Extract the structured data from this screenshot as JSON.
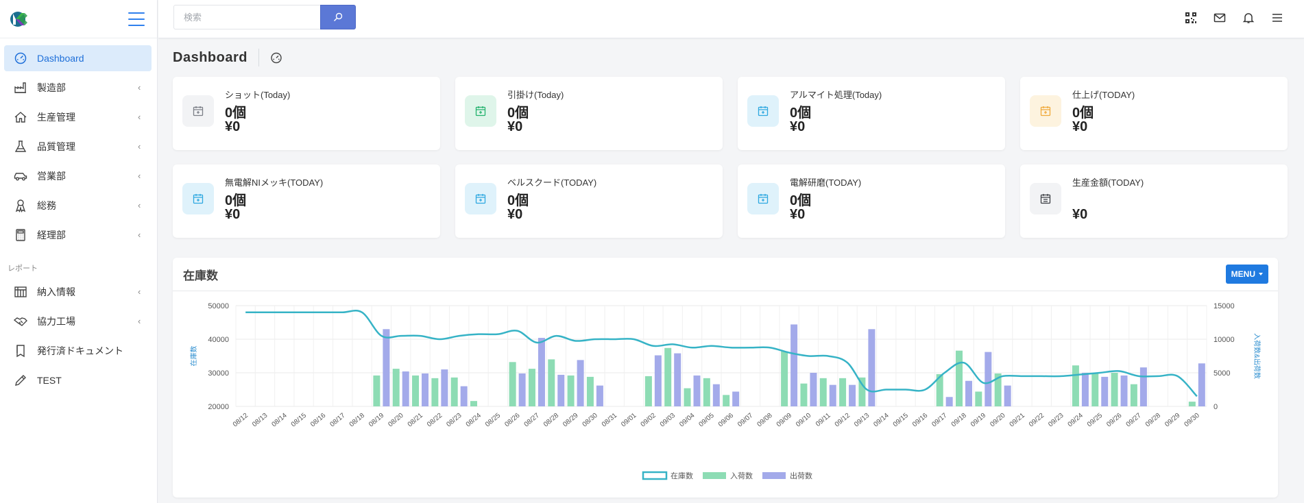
{
  "search": {
    "placeholder": "検索",
    "value": ""
  },
  "sidebar": {
    "items": [
      {
        "label": "Dashboard",
        "icon": "gauge-icon",
        "active": true,
        "chevron": false
      },
      {
        "label": "製造部",
        "icon": "factory-icon",
        "chevron": true
      },
      {
        "label": "生産管理",
        "icon": "home-icon",
        "chevron": true
      },
      {
        "label": "品質管理",
        "icon": "flask-icon",
        "chevron": true
      },
      {
        "label": "営業部",
        "icon": "car-icon",
        "chevron": true
      },
      {
        "label": "総務",
        "icon": "ribbon-icon",
        "chevron": true
      },
      {
        "label": "経理部",
        "icon": "calculator-icon",
        "chevron": true
      }
    ],
    "section_label": "レポート",
    "report_items": [
      {
        "label": "納入情報",
        "icon": "building-icon",
        "chevron": true
      },
      {
        "label": "協力工場",
        "icon": "handshake-icon",
        "chevron": true
      },
      {
        "label": "発行済ドキュメント",
        "icon": "document-icon",
        "chevron": false
      },
      {
        "label": "TEST",
        "icon": "pen-icon",
        "chevron": false
      }
    ]
  },
  "topbar": {
    "icons": [
      "qr-code-icon",
      "mail-icon",
      "bell-icon",
      "menu-icon"
    ]
  },
  "page": {
    "title": "Dashboard"
  },
  "cards": [
    {
      "title": "ショット(Today)",
      "count": "0個",
      "money": "¥0",
      "color": "#7b7f87",
      "bg": "#f2f3f5"
    },
    {
      "title": "引掛け(Today)",
      "count": "0個",
      "money": "¥0",
      "color": "#23b26d",
      "bg": "#dff5ea"
    },
    {
      "title": "アルマイト処理(Today)",
      "count": "0個",
      "money": "¥0",
      "color": "#2ea8e0",
      "bg": "#dff2fb"
    },
    {
      "title": "仕上げ(TODAY)",
      "count": "0個",
      "money": "¥0",
      "color": "#f0a93a",
      "bg": "#fdf3df"
    },
    {
      "title": "無電解NIメッキ(TODAY)",
      "count": "0個",
      "money": "¥0",
      "color": "#2ea8e0",
      "bg": "#dff2fb"
    },
    {
      "title": "ベルスクード(TODAY)",
      "count": "0個",
      "money": "¥0",
      "color": "#2ea8e0",
      "bg": "#dff2fb"
    },
    {
      "title": "電解研磨(TODAY)",
      "count": "0個",
      "money": "¥0",
      "color": "#2ea8e0",
      "bg": "#dff2fb"
    },
    {
      "title": "生産金額(TODAY)",
      "count": "",
      "money": "¥0",
      "color": "#3c3f45",
      "bg": "#f2f3f5"
    }
  ],
  "panel": {
    "title": "在庫数",
    "menu_label": "MENU"
  },
  "chart_data": {
    "type": "bar",
    "categories": [
      "08/12",
      "08/13",
      "08/14",
      "08/15",
      "08/16",
      "08/17",
      "08/18",
      "08/19",
      "08/20",
      "08/21",
      "08/22",
      "08/23",
      "08/24",
      "08/25",
      "08/26",
      "08/27",
      "08/28",
      "08/29",
      "08/30",
      "08/31",
      "09/01",
      "09/02",
      "09/03",
      "09/04",
      "09/05",
      "09/06",
      "09/07",
      "09/08",
      "09/09",
      "09/10",
      "09/11",
      "09/12",
      "09/13",
      "09/14",
      "09/15",
      "09/16",
      "09/17",
      "09/18",
      "09/19",
      "09/20",
      "09/21",
      "09/22",
      "09/23",
      "09/24",
      "09/25",
      "09/26",
      "09/27",
      "09/28",
      "09/29",
      "09/30"
    ],
    "y_left": {
      "label": "在庫数",
      "min": 20000,
      "max": 50000,
      "ticks": [
        20000,
        30000,
        40000,
        50000
      ]
    },
    "y_right": {
      "label": "入荷数&出荷数",
      "min": 0,
      "max": 15000,
      "ticks": [
        0,
        5000,
        10000,
        15000
      ]
    },
    "series": [
      {
        "name": "在庫数",
        "kind": "line",
        "axis": "left",
        "color": "#36b3c6",
        "values": [
          48000,
          48000,
          48000,
          48000,
          48000,
          48000,
          48000,
          41000,
          41000,
          41000,
          40000,
          41000,
          41500,
          41500,
          42500,
          39000,
          41000,
          39500,
          40000,
          40000,
          40000,
          38000,
          38500,
          37500,
          38000,
          37500,
          37500,
          37500,
          36000,
          35000,
          35000,
          33000,
          25000,
          25000,
          25000,
          25000,
          30000,
          33000,
          27000,
          29000,
          29000,
          29000,
          29000,
          29500,
          30000,
          30500,
          29000,
          29000,
          29000,
          23000
        ]
      },
      {
        "name": "入荷数",
        "kind": "bar",
        "axis": "right",
        "color": "#8ddcb4",
        "values": [
          0,
          0,
          0,
          0,
          0,
          0,
          0,
          4600,
          5600,
          4600,
          4200,
          4300,
          800,
          0,
          6600,
          5600,
          7000,
          4600,
          4400,
          0,
          0,
          4500,
          8700,
          2700,
          4200,
          1700,
          0,
          0,
          8200,
          3400,
          4200,
          4200,
          4300,
          0,
          0,
          0,
          4800,
          8300,
          2200,
          4900,
          0,
          0,
          0,
          6100,
          5000,
          5000,
          3300,
          0,
          0,
          700
        ]
      },
      {
        "name": "出荷数",
        "kind": "bar",
        "axis": "right",
        "color": "#a3aaea",
        "values": [
          0,
          0,
          0,
          0,
          0,
          0,
          0,
          11500,
          5200,
          4900,
          5500,
          3000,
          0,
          0,
          4900,
          10200,
          4700,
          6900,
          3100,
          0,
          0,
          7600,
          7900,
          4600,
          3300,
          2200,
          0,
          0,
          12200,
          5000,
          3200,
          3200,
          11500,
          0,
          0,
          0,
          1400,
          3800,
          8100,
          3100,
          0,
          0,
          0,
          5000,
          4400,
          4600,
          5800,
          0,
          0,
          6400
        ]
      }
    ],
    "legend": [
      "在庫数",
      "入荷数",
      "出荷数"
    ],
    "legend_position": "bottom",
    "grid": true
  }
}
